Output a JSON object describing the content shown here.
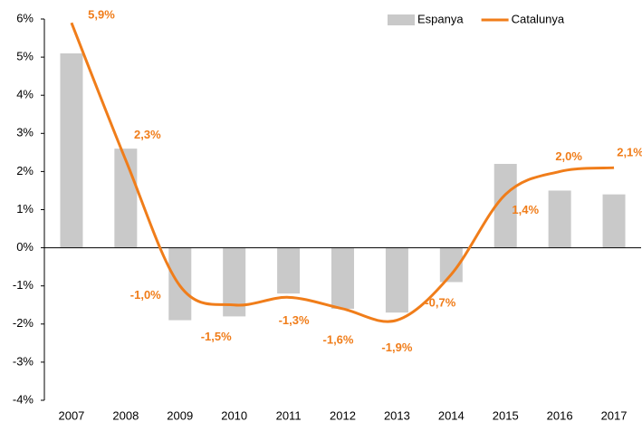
{
  "chart_data": {
    "type": "bar-line",
    "categories": [
      "2007",
      "2008",
      "2009",
      "2010",
      "2011",
      "2012",
      "2013",
      "2014",
      "2015",
      "2016",
      "2017"
    ],
    "series": [
      {
        "name": "Espanya",
        "type": "bar",
        "color": "#c9c9c9",
        "values": [
          5.1,
          2.6,
          -1.9,
          -1.8,
          -1.2,
          -1.6,
          -1.7,
          -0.9,
          2.2,
          1.5,
          1.4
        ]
      },
      {
        "name": "Catalunya",
        "type": "line",
        "color": "#f07d1a",
        "values": [
          5.9,
          2.3,
          -1.0,
          -1.5,
          -1.3,
          -1.6,
          -1.9,
          -0.7,
          1.4,
          2.0,
          2.1
        ],
        "value_labels": [
          "5,9%",
          "2,3%",
          "-1,0%",
          "-1,5%",
          "-1,3%",
          "-1,6%",
          "-1,9%",
          "-0,7%",
          "1,4%",
          "2,0%",
          "2,1%"
        ]
      }
    ],
    "ylim": [
      -4,
      6
    ],
    "yticks": [
      {
        "value": -4,
        "label": "-4%"
      },
      {
        "value": -3,
        "label": "-3%"
      },
      {
        "value": -2,
        "label": "-2%"
      },
      {
        "value": -1,
        "label": "-1%"
      },
      {
        "value": 0,
        "label": "0%"
      },
      {
        "value": 1,
        "label": "1%"
      },
      {
        "value": 2,
        "label": "2%"
      },
      {
        "value": 3,
        "label": "3%"
      },
      {
        "value": 4,
        "label": "4%"
      },
      {
        "value": 5,
        "label": "5%"
      },
      {
        "value": 6,
        "label": "6%"
      }
    ],
    "legend": "upper right"
  }
}
